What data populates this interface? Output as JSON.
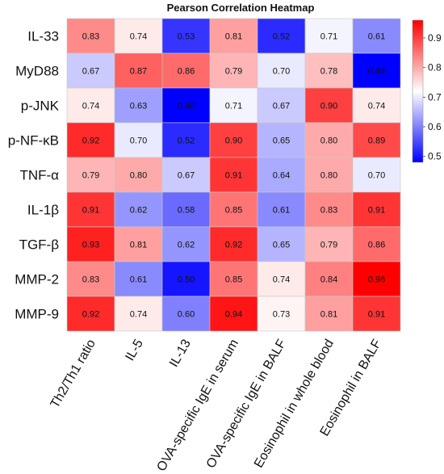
{
  "chart_data": {
    "type": "heatmap",
    "title": "Pearson Correlation Heatmap",
    "rows": [
      "IL-33",
      "MyD88",
      "p-JNK",
      "p-NF-κB",
      "TNF-α",
      "IL-1β",
      "TGF-β",
      "MMP-2",
      "MMP-9"
    ],
    "columns": [
      "Th2/Th1 ratio",
      "IL-5",
      "IL-13",
      "OVA-specific IgE in serum",
      "OVA-specific IgE in BALF",
      "Eosinophil in whole blood",
      "Eosinophil in BALF"
    ],
    "values": [
      [
        0.83,
        0.74,
        0.53,
        0.81,
        0.52,
        0.71,
        0.61
      ],
      [
        0.67,
        0.87,
        0.86,
        0.79,
        0.7,
        0.78,
        0.48
      ],
      [
        0.74,
        0.63,
        0.48,
        0.71,
        0.67,
        0.9,
        0.74
      ],
      [
        0.92,
        0.7,
        0.52,
        0.9,
        0.65,
        0.8,
        0.89
      ],
      [
        0.79,
        0.8,
        0.67,
        0.91,
        0.64,
        0.8,
        0.7
      ],
      [
        0.91,
        0.62,
        0.58,
        0.85,
        0.61,
        0.83,
        0.91
      ],
      [
        0.93,
        0.81,
        0.62,
        0.92,
        0.65,
        0.79,
        0.86
      ],
      [
        0.83,
        0.61,
        0.5,
        0.85,
        0.74,
        0.84,
        0.96
      ],
      [
        0.92,
        0.74,
        0.6,
        0.94,
        0.73,
        0.81,
        0.91
      ]
    ],
    "value_labels": [
      [
        "0.83",
        "0.74",
        "0.53",
        "0.81",
        "0.52",
        "0.71",
        "0.61"
      ],
      [
        "0.67",
        "0.87",
        "0.86",
        "0.79",
        "0.70",
        "0.78",
        "0.48"
      ],
      [
        "0.74",
        "0.63",
        "0.48",
        "0.71",
        "0.67",
        "0.90",
        "0.74"
      ],
      [
        "0.92",
        "0.70",
        "0.52",
        "0.90",
        "0.65",
        "0.80",
        "0.89"
      ],
      [
        "0.79",
        "0.80",
        "0.67",
        "0.91",
        "0.64",
        "0.80",
        "0.70"
      ],
      [
        "0.91",
        "0.62",
        "0.58",
        "0.85",
        "0.61",
        "0.83",
        "0.91"
      ],
      [
        "0.93",
        "0.81",
        "0.62",
        "0.92",
        "0.65",
        "0.79",
        "0.86"
      ],
      [
        "0.83",
        "0.61",
        "0.50",
        "0.85",
        "0.74",
        "0.84",
        "0.96"
      ],
      [
        "0.92",
        "0.74",
        "0.60",
        "0.94",
        "0.73",
        "0.81",
        "0.91"
      ]
    ],
    "color_scale": {
      "min": 0.48,
      "mid": 0.72,
      "max": 0.96,
      "low_color": "#0000ff",
      "mid_color": "#ffffff",
      "high_color": "#ff0000",
      "ticks": [
        0.5,
        0.6,
        0.7,
        0.8,
        0.9
      ],
      "tick_labels": [
        "0.5",
        "0.6",
        "0.7",
        "0.8",
        "0.9"
      ]
    },
    "legend": "colorbar, right",
    "grid": false
  }
}
